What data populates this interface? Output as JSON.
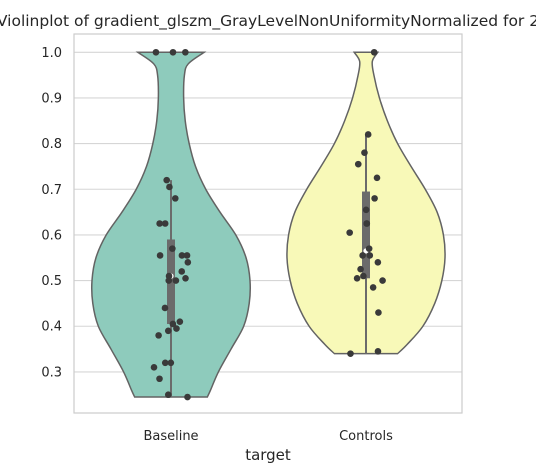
{
  "chart_data": {
    "type": "violin",
    "title": "Violinplot of gradient_glszm_GrayLevelNonUniformityNormalized for 2",
    "xlabel": "target",
    "ylabel": "",
    "categories": [
      "Baseline",
      "Controls"
    ],
    "ylim": [
      0.21,
      1.04
    ],
    "yticks": [
      0.3,
      0.4,
      0.5,
      0.6,
      0.7,
      0.8,
      0.9,
      1.0
    ],
    "yticklabels": [
      "0.3",
      "0.4",
      "0.5",
      "0.6",
      "0.7",
      "0.8",
      "0.9",
      "1.0"
    ],
    "grid": "horizontal",
    "colors": {
      "Baseline": "#8ecbbc",
      "Controls": "#f8f9b8",
      "outline": "#636363",
      "points": "#3a3a3a",
      "box": "#6b6b6b",
      "gridline": "#d6d6d6",
      "frame": "#cccccc"
    },
    "series": [
      {
        "category": "Baseline",
        "range": [
          0.245,
          1.0
        ],
        "box": {
          "q1": 0.405,
          "median": 0.51,
          "q3": 0.59,
          "whisker_low": 0.245,
          "whisker_high": 0.72
        },
        "density": [
          [
            0.245,
            0.46
          ],
          [
            0.26,
            0.5
          ],
          [
            0.3,
            0.6
          ],
          [
            0.35,
            0.76
          ],
          [
            0.4,
            0.92
          ],
          [
            0.45,
            0.99
          ],
          [
            0.5,
            1.0
          ],
          [
            0.55,
            0.95
          ],
          [
            0.6,
            0.82
          ],
          [
            0.65,
            0.62
          ],
          [
            0.7,
            0.44
          ],
          [
            0.75,
            0.31
          ],
          [
            0.8,
            0.23
          ],
          [
            0.85,
            0.18
          ],
          [
            0.9,
            0.16
          ],
          [
            0.95,
            0.17
          ],
          [
            0.975,
            0.22
          ],
          [
            1.0,
            0.42
          ]
        ],
        "points": [
          1.0,
          1.0,
          1.0,
          0.72,
          0.705,
          0.68,
          0.625,
          0.625,
          0.57,
          0.555,
          0.555,
          0.555,
          0.54,
          0.52,
          0.51,
          0.505,
          0.5,
          0.5,
          0.44,
          0.41,
          0.405,
          0.395,
          0.39,
          0.38,
          0.32,
          0.32,
          0.31,
          0.285,
          0.25,
          0.245
        ]
      },
      {
        "category": "Controls",
        "range": [
          0.34,
          1.0
        ],
        "box": {
          "q1": 0.505,
          "median": 0.565,
          "q3": 0.695,
          "whisker_low": 0.34,
          "whisker_high": 0.82
        },
        "density": [
          [
            0.34,
            0.4
          ],
          [
            0.36,
            0.52
          ],
          [
            0.4,
            0.72
          ],
          [
            0.45,
            0.87
          ],
          [
            0.5,
            0.96
          ],
          [
            0.55,
            1.0
          ],
          [
            0.6,
            0.98
          ],
          [
            0.65,
            0.9
          ],
          [
            0.7,
            0.75
          ],
          [
            0.75,
            0.57
          ],
          [
            0.8,
            0.4
          ],
          [
            0.85,
            0.27
          ],
          [
            0.9,
            0.17
          ],
          [
            0.95,
            0.1
          ],
          [
            0.98,
            0.08
          ],
          [
            1.0,
            0.15
          ]
        ],
        "points": [
          1.0,
          0.82,
          0.78,
          0.755,
          0.725,
          0.68,
          0.655,
          0.625,
          0.625,
          0.605,
          0.57,
          0.555,
          0.555,
          0.54,
          0.525,
          0.51,
          0.505,
          0.5,
          0.485,
          0.43,
          0.345,
          0.34
        ]
      }
    ]
  }
}
